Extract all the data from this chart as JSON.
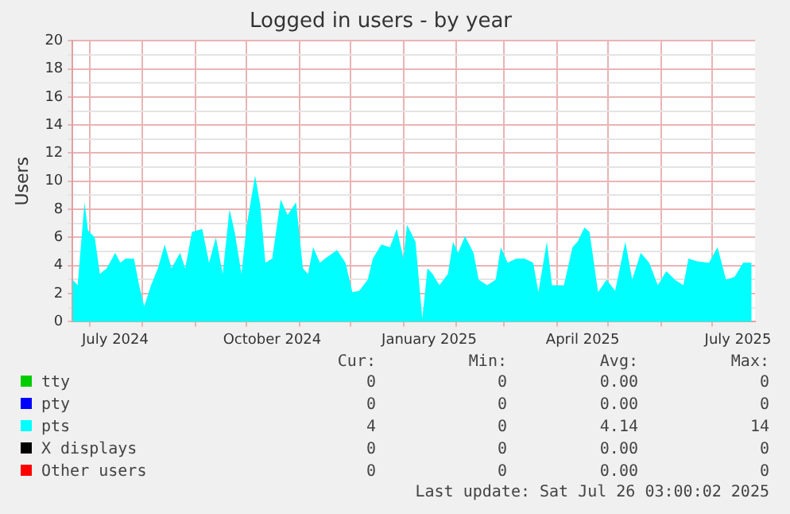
{
  "chart_data": {
    "type": "area",
    "title": "Logged in users - by year",
    "ylabel": "Users",
    "xlim": [
      "2024-06-21",
      "2025-07-26"
    ],
    "xticks": [
      {
        "value": "2024-07-01",
        "label": null
      },
      {
        "value": "2024-07-16",
        "label": "July 2024"
      },
      {
        "value": "2024-08-01",
        "label": null
      },
      {
        "value": "2024-09-01",
        "label": null
      },
      {
        "value": "2024-10-01",
        "label": null
      },
      {
        "value": "2024-10-16",
        "label": "October 2024"
      },
      {
        "value": "2024-11-01",
        "label": null
      },
      {
        "value": "2024-12-01",
        "label": null
      },
      {
        "value": "2025-01-01",
        "label": null
      },
      {
        "value": "2025-01-16",
        "label": "January 2025"
      },
      {
        "value": "2025-02-01",
        "label": null
      },
      {
        "value": "2025-03-01",
        "label": null
      },
      {
        "value": "2025-04-01",
        "label": null
      },
      {
        "value": "2025-04-16",
        "label": "April 2025"
      },
      {
        "value": "2025-05-01",
        "label": null
      },
      {
        "value": "2025-06-01",
        "label": null
      },
      {
        "value": "2025-07-01",
        "label": null
      },
      {
        "value": "2025-07-16",
        "label": "July 2025"
      }
    ],
    "ylim": [
      0,
      20
    ],
    "yticks": [
      0,
      {
        "value": 1,
        "label": null
      },
      2,
      {
        "value": 3,
        "label": null
      },
      4,
      {
        "value": 5,
        "label": null
      },
      6,
      {
        "value": 7,
        "label": null
      },
      8,
      {
        "value": 9,
        "label": null
      },
      10,
      {
        "value": 11,
        "label": null
      },
      12,
      {
        "value": 13,
        "label": null
      },
      14,
      {
        "value": 15,
        "label": null
      },
      16,
      {
        "value": 17,
        "label": null
      },
      18,
      {
        "value": 19,
        "label": null
      },
      20
    ],
    "grid": true,
    "legend": "bottom",
    "series": [
      {
        "name": "tty",
        "color": "#00cc00"
      },
      {
        "name": "pty",
        "color": "#0000ff"
      },
      {
        "name": "pts",
        "color": "#00ffff",
        "x": [
          "2024-06-21",
          "2024-06-24",
          "2024-06-28",
          "2024-06-30",
          "2024-07-04",
          "2024-07-07",
          "2024-07-11",
          "2024-07-16",
          "2024-07-19",
          "2024-07-22",
          "2024-07-27",
          "2024-07-30",
          "2024-08-02",
          "2024-08-06",
          "2024-08-10",
          "2024-08-14",
          "2024-08-18",
          "2024-08-23",
          "2024-08-26",
          "2024-08-30",
          "2024-09-05",
          "2024-09-09",
          "2024-09-13",
          "2024-09-17",
          "2024-09-21",
          "2024-09-24",
          "2024-09-28",
          "2024-10-01",
          "2024-10-06",
          "2024-10-09",
          "2024-10-12",
          "2024-10-16",
          "2024-10-21",
          "2024-10-25",
          "2024-10-30",
          "2024-11-03",
          "2024-11-06",
          "2024-11-09",
          "2024-11-13",
          "2024-11-16",
          "2024-11-23",
          "2024-11-28",
          "2024-12-02",
          "2024-12-06",
          "2024-12-11",
          "2024-12-14",
          "2024-12-19",
          "2024-12-24",
          "2024-12-28",
          "2025-01-01",
          "2025-01-03",
          "2025-01-08",
          "2025-01-12",
          "2025-01-15",
          "2025-01-18",
          "2025-01-22",
          "2025-01-27",
          "2025-01-30",
          "2025-02-02",
          "2025-02-06",
          "2025-02-11",
          "2025-02-14",
          "2025-02-19",
          "2025-02-24",
          "2025-02-27",
          "2025-03-03",
          "2025-03-08",
          "2025-03-13",
          "2025-03-18",
          "2025-03-21",
          "2025-03-26",
          "2025-03-29",
          "2025-04-05",
          "2025-04-10",
          "2025-04-13",
          "2025-04-17",
          "2025-04-20",
          "2025-04-25",
          "2025-04-30",
          "2025-05-05",
          "2025-05-11",
          "2025-05-15",
          "2025-05-20",
          "2025-05-25",
          "2025-05-30",
          "2025-06-04",
          "2025-06-09",
          "2025-06-14",
          "2025-06-17",
          "2025-06-22",
          "2025-06-29",
          "2025-07-04",
          "2025-07-09",
          "2025-07-14",
          "2025-07-19",
          "2025-07-24"
        ],
        "values": [
          3.0,
          2.6,
          8.5,
          6.5,
          6.0,
          3.4,
          3.8,
          4.9,
          4.2,
          4.5,
          4.5,
          2.6,
          1.1,
          2.6,
          3.8,
          5.5,
          3.8,
          4.9,
          3.8,
          6.4,
          6.6,
          4.2,
          6.0,
          3.4,
          8.0,
          6.4,
          3.4,
          6.8,
          10.4,
          8.3,
          4.2,
          4.5,
          8.7,
          7.6,
          8.5,
          3.8,
          3.4,
          5.3,
          4.2,
          4.5,
          5.1,
          4.2,
          2.1,
          2.2,
          3.0,
          4.5,
          5.5,
          5.3,
          6.6,
          4.5,
          6.9,
          5.7,
          0.2,
          3.8,
          3.4,
          2.6,
          3.4,
          5.7,
          4.9,
          6.1,
          4.9,
          3.0,
          2.6,
          3.0,
          5.3,
          4.2,
          4.5,
          4.5,
          4.2,
          2.1,
          5.7,
          2.6,
          2.6,
          5.3,
          5.7,
          6.7,
          6.4,
          2.1,
          3.0,
          2.2,
          5.7,
          3.0,
          4.9,
          4.2,
          2.6,
          3.6,
          3.0,
          2.6,
          4.5,
          4.3,
          4.2,
          5.3,
          3.0,
          3.2,
          4.2,
          4.2
        ]
      },
      {
        "name": "X displays",
        "color": "#000000"
      },
      {
        "name": "Other users",
        "color": "#ff0000"
      }
    ],
    "annotations": [
      "Cur:",
      "Min:",
      "Avg:",
      "Max:",
      "0",
      "0",
      "0.00",
      "0",
      "0",
      "0",
      "0.00",
      "0",
      "4",
      "0",
      "4.14",
      "14",
      "0",
      "0",
      "0.00",
      "0",
      "0",
      "0",
      "0.00",
      "0",
      "Last update: Sat Jul 26 03:00:02 2025"
    ]
  }
}
